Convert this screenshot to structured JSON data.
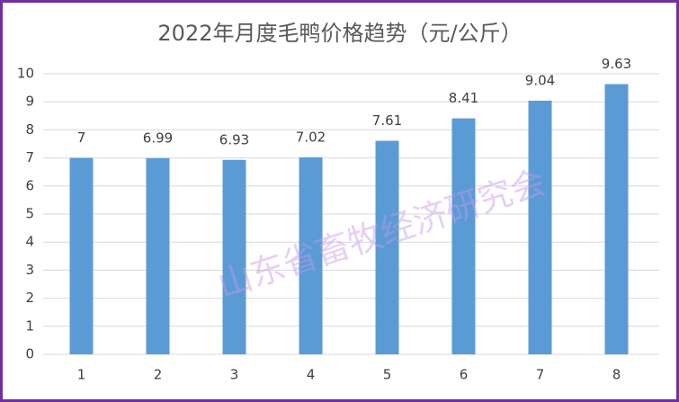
{
  "chart_data": {
    "type": "bar",
    "title": "2022年月度毛鸭价格趋势（元/公斤）",
    "categories": [
      "1",
      "2",
      "3",
      "4",
      "5",
      "6",
      "7",
      "8"
    ],
    "values": [
      7,
      6.99,
      6.93,
      7.02,
      7.61,
      8.41,
      9.04,
      9.63
    ],
    "color": "#5b9bd5",
    "ylim": [
      0,
      10
    ],
    "yticks": [
      0,
      1,
      2,
      3,
      4,
      5,
      6,
      7,
      8,
      9,
      10
    ],
    "grid": true,
    "watermark": "山东省畜牧经济研究会"
  }
}
